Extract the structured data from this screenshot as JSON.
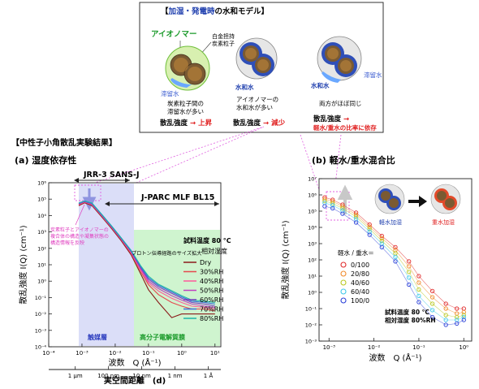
{
  "model_box": {
    "title_prefix": "【",
    "title_blue": "加湿・発電時",
    "title_rest": "の水和モデル】",
    "ionomer_label": "アイオノマー",
    "pt_carbon_label_1": "白金担持",
    "pt_carbon_label_2": "炭素粒子",
    "stagnant_water_1": "滞留水",
    "hydration_water_2": "水和水",
    "stagnant_water_3": "滞留水",
    "hydration_water_3": "水和水",
    "desc1_line1": "炭素粒子間の",
    "desc1_line2": "滞留水が多い",
    "desc2_line1": "アイオノマーの",
    "desc2_line2": "水和水が多い",
    "desc3_line1": "両方がほぼ同じ",
    "scatter_label": "散乱強度",
    "arrow": "→",
    "state1": "上昇",
    "state2": "減少",
    "state3_line2": "軽水/重水の比率に依存",
    "colors": {
      "green": "#1a9a2a",
      "blue": "#1f3fae",
      "red": "#e02020",
      "water_blue": "#3a5bd0"
    }
  },
  "section_title": "【中性子小角散乱実験結果】",
  "panel_a": {
    "title": "(a) 湿度依存性",
    "ylabel": "散乱強度 I(Q) (cm⁻¹)",
    "xlabel": "波数　Q (Å⁻¹)",
    "real_space_label": "実空間距離　(d)",
    "real_space_ticks": [
      "1 μm",
      "100 nm",
      "10 nm",
      "1 nm",
      "1 Å"
    ],
    "jrr3_label": "JRR-3 SANS-J",
    "jparc_label": "J-PARC MLF BL15",
    "annotation_line1": "炭素粒子とアイオノマーの",
    "annotation_line2": "複合体の構造や凝集状態の",
    "annotation_line3": "構造情報を反映",
    "proton_label": "プロトン伝導経路のサイズ拡大",
    "catalyst_layer_label": "触媒層",
    "membrane_label": "高分子電解質膜",
    "sample_temp_label": "試料温度 80 °C",
    "rh_header": "相対湿度",
    "xticks": [
      "10⁻⁴",
      "10⁻³",
      "10⁻²",
      "10⁻¹",
      "10⁰",
      "10¹"
    ],
    "yticks": [
      "10⁻⁴",
      "10⁻³",
      "10⁻²",
      "10⁻¹",
      "10⁰",
      "10¹",
      "10²",
      "10³",
      "10⁴",
      "10⁵",
      "10⁶"
    ]
  },
  "panel_b": {
    "title": "(b) 軽水/重水混合比",
    "ylabel": "散乱強度 I(Q) (cm⁻¹)",
    "xlabel": "波数　Q (Å⁻¹)",
    "legend_header": "軽水 / 重水＝",
    "light_water_label": "軽水加湿",
    "heavy_water_label": "重水加湿",
    "cond_line1": "試料温度 80 °C",
    "cond_line2": "相対湿度 80%RH",
    "xticks": [
      "10⁻³",
      "10⁻²",
      "10⁻¹",
      "10⁰"
    ],
    "yticks": [
      "10⁻³",
      "10⁻²",
      "10⁻¹",
      "10⁰",
      "10¹",
      "10²",
      "10³",
      "10⁴",
      "10⁵",
      "10⁶",
      "10⁷"
    ]
  },
  "chart_data": [
    {
      "type": "line",
      "title": "(a) 湿度依存性",
      "xlabel": "波数　Q (Å⁻¹)",
      "ylabel": "散乱強度 I(Q) (cm⁻¹)",
      "xscale": "log",
      "yscale": "log",
      "xlim": [
        0.0001,
        15
      ],
      "ylim": [
        0.0001,
        1000000
      ],
      "legend_title": "相対湿度",
      "legend_position": "right",
      "x": [
        0.0008,
        0.0012,
        0.002,
        0.004,
        0.008,
        0.015,
        0.03,
        0.06,
        0.1,
        0.2,
        0.5,
        1,
        2,
        5,
        10
      ],
      "series": [
        {
          "name": "Dry",
          "color": "#8b1a1a",
          "values": [
            40000,
            60000,
            40000,
            8000,
            1500,
            300,
            40,
            2.5,
            0.3,
            0.05,
            0.006,
            0.01,
            0.01,
            0.01,
            0.01
          ]
        },
        {
          "name": "30%RH",
          "color": "#e5484d",
          "values": [
            45000,
            65000,
            45000,
            9000,
            1700,
            350,
            50,
            3.5,
            0.6,
            0.15,
            0.05,
            0.03,
            0.02,
            0.02,
            0.015
          ]
        },
        {
          "name": "40%RH",
          "color": "#ff5a9a",
          "values": [
            47000,
            68000,
            47000,
            9500,
            1800,
            370,
            55,
            4,
            0.8,
            0.25,
            0.09,
            0.05,
            0.03,
            0.025,
            0.02
          ]
        },
        {
          "name": "50%RH",
          "color": "#c040c0",
          "values": [
            50000,
            70000,
            50000,
            10000,
            1900,
            390,
            60,
            5,
            1,
            0.35,
            0.13,
            0.07,
            0.04,
            0.03,
            0.025
          ]
        },
        {
          "name": "60%RH",
          "color": "#7a3fbf",
          "values": [
            52000,
            72000,
            52000,
            10500,
            2000,
            410,
            65,
            6,
            1.3,
            0.45,
            0.18,
            0.09,
            0.05,
            0.04,
            0.03
          ]
        },
        {
          "name": "70%RH",
          "color": "#3a6fd8",
          "values": [
            55000,
            75000,
            55000,
            11000,
            2100,
            430,
            70,
            7,
            1.6,
            0.55,
            0.22,
            0.11,
            0.06,
            0.05,
            0.04
          ]
        },
        {
          "name": "80%RH",
          "color": "#1fb5a8",
          "values": [
            58000,
            78000,
            58000,
            11500,
            2200,
            450,
            75,
            8,
            2,
            0.65,
            0.26,
            0.13,
            0.07,
            0.06,
            0.05
          ]
        }
      ]
    },
    {
      "type": "scatter",
      "title": "(b) 軽水/重水混合比",
      "xlabel": "波数　Q (Å⁻¹)",
      "ylabel": "散乱強度 I(Q) (cm⁻¹)",
      "xscale": "log",
      "yscale": "log",
      "xlim": [
        0.0006,
        1.5
      ],
      "ylim": [
        0.001,
        10000000
      ],
      "legend_title": "軽水 / 重水＝",
      "legend_position": "left",
      "x": [
        0.0008,
        0.0012,
        0.002,
        0.004,
        0.008,
        0.015,
        0.03,
        0.06,
        0.1,
        0.2,
        0.4,
        0.7,
        1.0
      ],
      "series": [
        {
          "name": "0/100",
          "color": "#e02a2a",
          "values": [
            700000,
            500000,
            250000,
            80000,
            15000,
            3000,
            600,
            80,
            10,
            1.2,
            0.2,
            0.1,
            0.1
          ]
        },
        {
          "name": "20/80",
          "color": "#f08a2a",
          "values": [
            550000,
            400000,
            200000,
            60000,
            11000,
            2200,
            400,
            40,
            4,
            0.5,
            0.1,
            0.05,
            0.06
          ]
        },
        {
          "name": "40/60",
          "color": "#b8c820",
          "values": [
            420000,
            300000,
            150000,
            45000,
            8000,
            1500,
            250,
            18,
            1.5,
            0.2,
            0.04,
            0.03,
            0.04
          ]
        },
        {
          "name": "60/40",
          "color": "#3fc8e8",
          "values": [
            320000,
            230000,
            110000,
            32000,
            5500,
            1000,
            150,
            8,
            0.6,
            0.08,
            0.02,
            0.02,
            0.03
          ]
        },
        {
          "name": "100/0",
          "color": "#2a40d8",
          "values": [
            200000,
            150000,
            70000,
            20000,
            3500,
            600,
            80,
            3,
            0.25,
            0.03,
            0.01,
            0.012,
            0.02
          ]
        }
      ]
    }
  ]
}
